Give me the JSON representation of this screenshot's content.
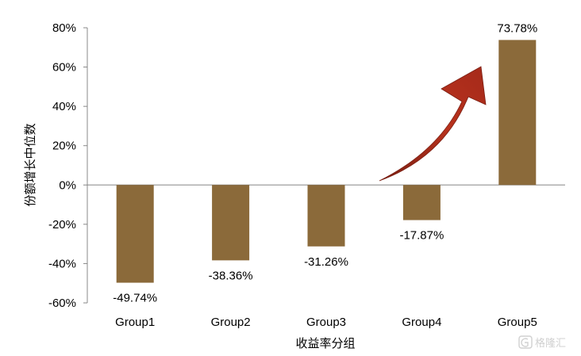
{
  "chart_data": {
    "type": "bar",
    "categories": [
      "Group1",
      "Group2",
      "Group3",
      "Group4",
      "Group5"
    ],
    "values": [
      -49.74,
      -38.36,
      -31.26,
      -17.87,
      73.78
    ],
    "data_labels": [
      "-49.74%",
      "-38.36%",
      "-31.26%",
      "-17.87%",
      "73.78%"
    ],
    "title": "",
    "xlabel": "收益率分组",
    "ylabel": "份额增长中位数",
    "ylim": [
      -60,
      80
    ],
    "yticks": [
      80,
      60,
      40,
      20,
      0,
      -20,
      -40,
      -60
    ],
    "ytick_labels": [
      "80%",
      "60%",
      "40%",
      "20%",
      "0%",
      "-20%",
      "-40%",
      "-60%"
    ],
    "grid": false,
    "legend": "none",
    "annotation": "red arrow pointing up toward Group5",
    "colors": {
      "bar": "#8B6A3A",
      "arrow": "#A52A1A",
      "axis": "#888888"
    }
  },
  "watermark": {
    "text": "格隆汇",
    "icon": "watermark-logo-icon"
  }
}
